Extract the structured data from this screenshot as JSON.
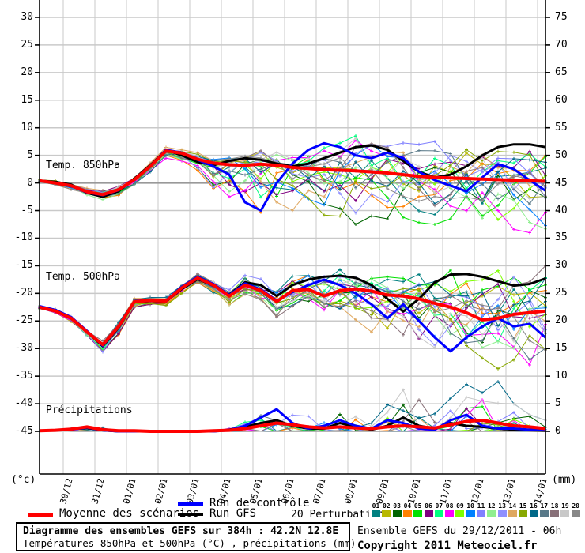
{
  "axes": {
    "left": {
      "unit": "(°c)",
      "ticks": [
        30,
        25,
        20,
        15,
        10,
        5,
        0,
        -5,
        -10,
        -15,
        -20,
        -25,
        -30,
        -35,
        -40,
        -45
      ]
    },
    "right": {
      "unit": "(mm)",
      "ticks": [
        75,
        70,
        65,
        60,
        55,
        50,
        45,
        40,
        35,
        30,
        25,
        20,
        15,
        10,
        5,
        0
      ]
    },
    "x": {
      "labels": [
        "30/12",
        "31/12",
        "01/01",
        "02/01",
        "03/01",
        "04/01",
        "05/01",
        "06/01",
        "07/01",
        "08/01",
        "09/01",
        "10/01",
        "11/01",
        "12/01",
        "13/01",
        "14/01"
      ]
    }
  },
  "panels": {
    "temp850": {
      "label": "Temp. 850hPa"
    },
    "temp500": {
      "label": "Temp. 500hPa"
    },
    "precip": {
      "label": "Précipitations"
    }
  },
  "legend": {
    "mean": {
      "label": "Moyenne des scénarios",
      "color": "#ff0000"
    },
    "control": {
      "label": "Run de contrôle",
      "color": "#0000ff"
    },
    "gfs": {
      "label": "Run GFS",
      "color": "#000000"
    },
    "perturbations_label": "20 Perturbations"
  },
  "perturbations": {
    "ids": [
      "01",
      "02",
      "03",
      "04",
      "05",
      "06",
      "07",
      "08",
      "09",
      "10",
      "11",
      "12",
      "13",
      "14",
      "15",
      "16",
      "17",
      "18",
      "19",
      "20"
    ],
    "colors": [
      "#008080",
      "#b8b800",
      "#006400",
      "#ff8000",
      "#00e000",
      "#800080",
      "#00ff7f",
      "#ff00ff",
      "#7fff00",
      "#0080ff",
      "#8080ff",
      "#90ee90",
      "#9090ff",
      "#dfa860",
      "#88a800",
      "#006888",
      "#587888",
      "#887078",
      "#c8c8c8",
      "#888888"
    ]
  },
  "footer": {
    "title": "Diagramme des ensembles GEFS sur 384h : 42.2N 12.8E",
    "subtitle": "Températures 850hPa et 500hPa (°C) , précipitations (mm)",
    "run_info": "Ensemble GEFS du 29/12/2011 - 06h",
    "copyright": "Copyright 2011 Meteociel.fr"
  },
  "chart_data": {
    "type": "line",
    "title": "Diagramme des ensembles GEFS sur 384h : 42.2N 12.8E",
    "x_hours_step": 12,
    "x_total_hours": 384,
    "grid": true,
    "colors": {
      "mean": "#ff0000",
      "control": "#0000ff",
      "gfs": "#000000",
      "grid": "#c9c9c9",
      "zero_line": "#999999"
    },
    "ylim_temp": [
      -45,
      30
    ],
    "ylim_precip": [
      0,
      75
    ],
    "panels": [
      {
        "id": "temp850",
        "label": "Temp. 850hPa",
        "unit": "°C",
        "series": {
          "mean": [
            0.4,
            0.0,
            -0.5,
            -1.6,
            -2.1,
            -1.2,
            0.6,
            3.0,
            5.8,
            5.4,
            4.3,
            3.6,
            3.3,
            3.2,
            3.4,
            3.2,
            2.8,
            2.6,
            2.4,
            2.3,
            2.2,
            2.0,
            1.8,
            1.5,
            1.2,
            1.0,
            0.9,
            0.8,
            0.7,
            0.6,
            0.5,
            0.4,
            0.3
          ],
          "control": [
            0.4,
            0.0,
            -0.6,
            -1.7,
            -2.2,
            -1.3,
            0.6,
            3.0,
            6.0,
            5.5,
            4.2,
            3.0,
            1.5,
            -3.5,
            -5.0,
            0.0,
            3.5,
            6.0,
            7.2,
            6.5,
            5.0,
            4.5,
            5.5,
            4.5,
            2.0,
            0.5,
            -0.5,
            -1.5,
            1.0,
            3.4,
            2.5,
            0.5,
            -1.4
          ],
          "gfs": [
            0.4,
            0.2,
            -0.3,
            -1.8,
            -2.5,
            -1.5,
            0.8,
            3.2,
            6.0,
            5.0,
            3.8,
            3.2,
            4.0,
            4.5,
            4.2,
            3.5,
            3.0,
            3.5,
            4.5,
            5.5,
            6.5,
            6.8,
            6.0,
            4.0,
            2.0,
            1.0,
            1.5,
            3.0,
            5.0,
            6.5,
            7.0,
            7.0,
            6.5
          ]
        },
        "envelope": {
          "min": [
            0.1,
            -0.4,
            -1.2,
            -2.5,
            -3.2,
            -2.5,
            -0.5,
            2.0,
            4.5,
            4.0,
            2.0,
            -1.0,
            -2.5,
            -4.5,
            -6.5,
            -7.0,
            -5.0,
            -4.0,
            -6.0,
            -7.0,
            -7.5,
            -6.0,
            -6.5,
            -7.0,
            -7.5,
            -8.0,
            -7.0,
            -6.5,
            -8.0,
            -8.5,
            -9.0,
            -9.0,
            -9.0
          ],
          "max": [
            0.7,
            0.5,
            0.2,
            -0.8,
            -1.2,
            -0.3,
            1.5,
            4.0,
            6.5,
            6.2,
            5.5,
            5.0,
            5.5,
            6.0,
            6.5,
            6.5,
            7.0,
            7.5,
            9.0,
            9.5,
            10.0,
            8.5,
            8.0,
            7.5,
            7.0,
            7.5,
            8.0,
            8.0,
            7.5,
            7.5,
            8.0,
            7.5,
            7.0
          ]
        }
      },
      {
        "id": "temp500",
        "label": "Temp. 500hPa",
        "unit": "°C",
        "series": {
          "mean": [
            -22.5,
            -23.2,
            -24.5,
            -27.0,
            -29.3,
            -26.0,
            -21.5,
            -21.3,
            -21.4,
            -19.0,
            -17.2,
            -18.5,
            -20.5,
            -18.5,
            -19.5,
            -21.5,
            -19.5,
            -19.3,
            -20.5,
            -19.5,
            -19.2,
            -19.6,
            -20.3,
            -20.5,
            -21.0,
            -21.8,
            -22.5,
            -23.5,
            -24.8,
            -24.5,
            -23.8,
            -23.5,
            -23.2
          ],
          "control": [
            -22.3,
            -23.0,
            -24.3,
            -26.8,
            -29.5,
            -26.0,
            -21.4,
            -21.2,
            -21.3,
            -18.8,
            -17.0,
            -18.3,
            -20.3,
            -18.2,
            -19.3,
            -21.3,
            -19.8,
            -18.5,
            -17.5,
            -18.5,
            -20.0,
            -22.0,
            -24.5,
            -22.0,
            -25.0,
            -28.0,
            -30.5,
            -28.0,
            -26.0,
            -24.5,
            -26.0,
            -25.5,
            -28.0
          ],
          "gfs": [
            -22.4,
            -23.0,
            -24.4,
            -27.0,
            -29.6,
            -26.2,
            -21.6,
            -21.4,
            -21.5,
            -19.2,
            -17.4,
            -18.6,
            -20.2,
            -18.0,
            -18.5,
            -20.5,
            -18.5,
            -17.5,
            -17.0,
            -16.8,
            -17.2,
            -18.5,
            -21.0,
            -23.3,
            -21.0,
            -18.0,
            -16.6,
            -16.5,
            -17.0,
            -17.8,
            -18.6,
            -18.3,
            -17.3
          ]
        },
        "envelope": {
          "min": [
            -23.0,
            -23.8,
            -25.2,
            -27.8,
            -30.8,
            -27.5,
            -22.5,
            -22.0,
            -22.2,
            -20.0,
            -18.2,
            -20.0,
            -22.5,
            -20.5,
            -22.0,
            -24.5,
            -23.0,
            -22.5,
            -24.0,
            -25.0,
            -26.5,
            -27.0,
            -28.5,
            -29.0,
            -30.5,
            -31.5,
            -32.5,
            -32.0,
            -33.5,
            -34.0,
            -33.5,
            -34.0,
            -34.5
          ],
          "max": [
            -22.0,
            -22.6,
            -23.8,
            -26.2,
            -28.2,
            -24.8,
            -20.8,
            -20.6,
            -20.7,
            -18.2,
            -16.3,
            -17.3,
            -18.8,
            -16.5,
            -17.0,
            -18.5,
            -16.5,
            -15.5,
            -15.0,
            -14.8,
            -15.2,
            -15.5,
            -16.0,
            -16.5,
            -16.0,
            -15.5,
            -15.0,
            -14.8,
            -15.0,
            -15.2,
            -15.5,
            -15.3,
            -14.8
          ]
        }
      },
      {
        "id": "precip",
        "label": "Précipitations",
        "unit": "mm",
        "series": {
          "mean": [
            0.1,
            0.2,
            0.4,
            0.8,
            0.3,
            0.1,
            0.1,
            0.0,
            0.0,
            0.0,
            0.0,
            0.1,
            0.2,
            0.5,
            1.0,
            1.5,
            1.2,
            0.8,
            0.6,
            0.8,
            0.6,
            0.5,
            0.8,
            1.0,
            0.8,
            0.6,
            1.2,
            1.8,
            2.0,
            1.5,
            1.0,
            0.8,
            0.5
          ],
          "control": [
            0.1,
            0.2,
            0.3,
            0.7,
            0.2,
            0.0,
            0.0,
            0.0,
            0.0,
            0.0,
            0.0,
            0.0,
            0.2,
            1.0,
            2.5,
            4.0,
            1.5,
            0.5,
            1.0,
            2.0,
            1.0,
            0.5,
            2.0,
            1.5,
            0.5,
            0.3,
            2.0,
            3.0,
            1.0,
            0.5,
            0.5,
            0.3,
            0.2
          ],
          "gfs": [
            0.1,
            0.2,
            0.4,
            0.6,
            0.2,
            0.0,
            0.0,
            0.0,
            0.0,
            0.0,
            0.0,
            0.0,
            0.3,
            0.8,
            1.5,
            2.0,
            1.0,
            0.5,
            0.5,
            1.5,
            0.8,
            0.3,
            1.0,
            2.5,
            1.0,
            0.5,
            1.5,
            1.0,
            0.8,
            0.5,
            0.3,
            0.2,
            0.1
          ]
        },
        "envelope": {
          "min": [
            0,
            0,
            0,
            0,
            0,
            0,
            0,
            0,
            0,
            0,
            0,
            0,
            0,
            0,
            0,
            0,
            0,
            0,
            0,
            0,
            0,
            0,
            0,
            0,
            0,
            0,
            0,
            0,
            0,
            0,
            0,
            0,
            0
          ],
          "max": [
            0.3,
            0.5,
            1.2,
            2.5,
            1.0,
            0.3,
            0.2,
            0.0,
            0.0,
            0.0,
            0.0,
            0.3,
            1.0,
            2.0,
            4.5,
            8.0,
            5.0,
            3.0,
            2.5,
            6.5,
            8.0,
            3.0,
            5.0,
            7.5,
            8.0,
            4.0,
            6.0,
            8.5,
            7.0,
            9.0,
            5.0,
            3.0,
            2.0
          ]
        }
      }
    ]
  }
}
